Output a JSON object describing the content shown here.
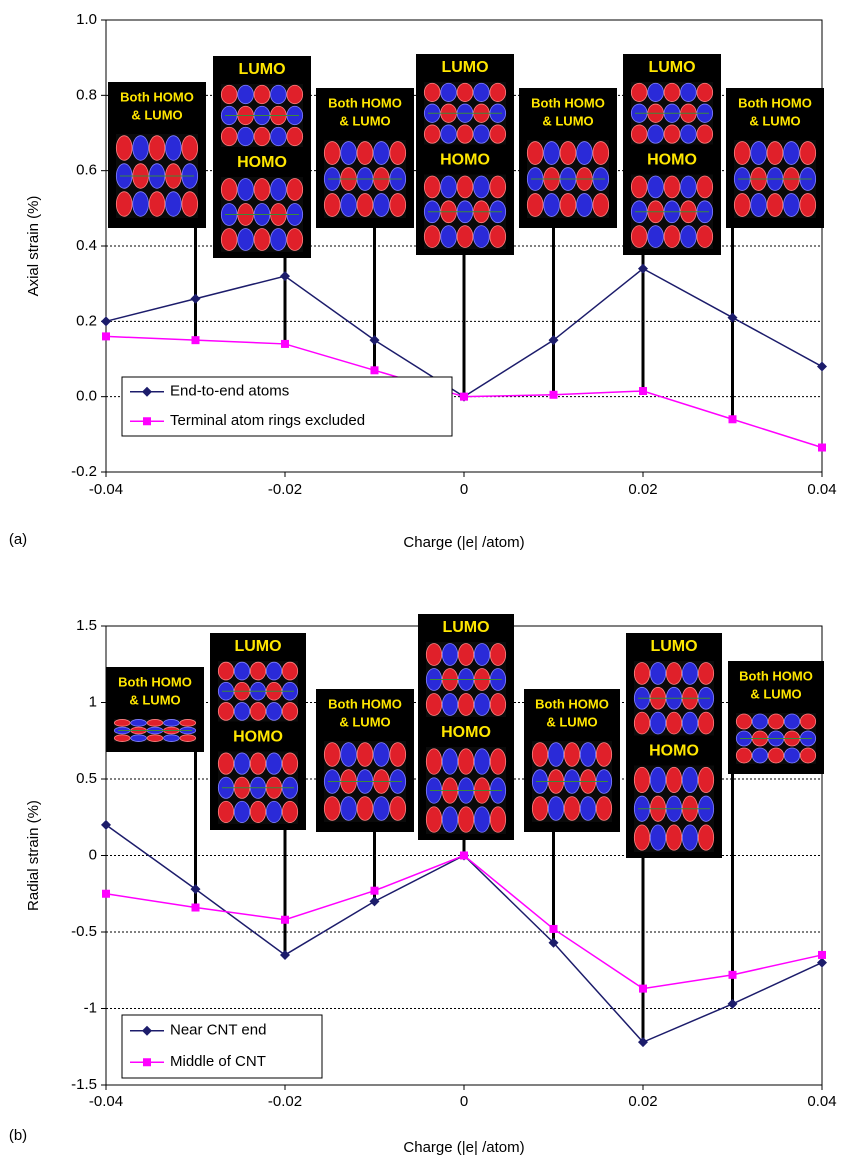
{
  "chart_data": [
    {
      "type": "line",
      "panel_label": "(a)",
      "xlabel": "Charge (|e| /atom)",
      "ylabel": "Axial strain (%)",
      "x": [
        -0.04,
        -0.03,
        -0.02,
        -0.01,
        0,
        0.01,
        0.02,
        0.03,
        0.04
      ],
      "series": [
        {
          "name": "End-to-end atoms",
          "color": "#1c1c6b",
          "marker": "diamond",
          "values": [
            0.2,
            0.26,
            0.32,
            0.15,
            0.0,
            0.15,
            0.34,
            0.21,
            0.08
          ]
        },
        {
          "name": "Terminal atom rings excluded",
          "color": "#ff00ff",
          "marker": "square",
          "values": [
            0.16,
            0.15,
            0.14,
            0.07,
            0.0,
            0.005,
            0.015,
            -0.06,
            -0.135
          ]
        }
      ],
      "xlim": [
        -0.04,
        0.04
      ],
      "xticks": [
        -0.04,
        -0.02,
        0,
        0.02,
        0.04
      ],
      "ylim": [
        -0.2,
        1.0
      ],
      "yticks": [
        -0.2,
        {
          "value": 0,
          "label": "0.0"
        },
        0.2,
        0.4,
        0.6,
        0.8,
        {
          "value": 1,
          "label": "1.0"
        }
      ],
      "grid": true,
      "legend": "lower left",
      "annotations": [
        {
          "lines": [
            "Both HOMO",
            "& LUMO"
          ]
        },
        {
          "top": "LUMO",
          "middle": "HOMO"
        },
        {
          "lines": [
            "Both HOMO",
            "& LUMO"
          ]
        },
        {
          "top": "LUMO",
          "middle": "HOMO"
        },
        {
          "lines": [
            "Both HOMO",
            "& LUMO"
          ]
        },
        {
          "top": "LUMO",
          "middle": "HOMO"
        },
        {
          "lines": [
            "Both HOMO",
            "& LUMO"
          ]
        }
      ]
    },
    {
      "type": "line",
      "panel_label": "(b)",
      "xlabel": "Charge (|e| /atom)",
      "ylabel": "Radial strain (%)",
      "x": [
        -0.04,
        -0.03,
        -0.02,
        -0.01,
        0,
        0.01,
        0.02,
        0.03,
        0.04
      ],
      "series": [
        {
          "name": "Near CNT end",
          "color": "#1c1c6b",
          "marker": "diamond",
          "values": [
            0.2,
            -0.22,
            -0.65,
            -0.3,
            0.0,
            -0.57,
            -1.22,
            -0.97,
            -0.7
          ]
        },
        {
          "name": "Middle of CNT",
          "color": "#ff00ff",
          "marker": "square",
          "values": [
            -0.25,
            -0.34,
            -0.42,
            -0.23,
            0.0,
            -0.48,
            -0.87,
            -0.78,
            -0.65
          ]
        }
      ],
      "xlim": [
        -0.04,
        0.04
      ],
      "xticks": [
        -0.04,
        -0.02,
        0,
        0.02,
        0.04
      ],
      "ylim": [
        -1.5,
        1.5
      ],
      "yticks": [
        -1.5,
        -1,
        -0.5,
        0,
        0.5,
        1,
        1.5
      ],
      "grid": true,
      "legend": "lower left",
      "annotations": [
        {
          "lines": [
            "Both HOMO",
            "& LUMO"
          ]
        },
        {
          "top": "LUMO",
          "middle": "HOMO"
        },
        {
          "lines": [
            "Both HOMO",
            "& LUMO"
          ]
        },
        {
          "top": "LUMO",
          "middle": "HOMO"
        },
        {
          "lines": [
            "Both HOMO",
            "& LUMO"
          ]
        },
        {
          "top": "LUMO",
          "middle": "HOMO"
        },
        {
          "lines": [
            "Both HOMO",
            "& LUMO"
          ]
        }
      ]
    }
  ]
}
